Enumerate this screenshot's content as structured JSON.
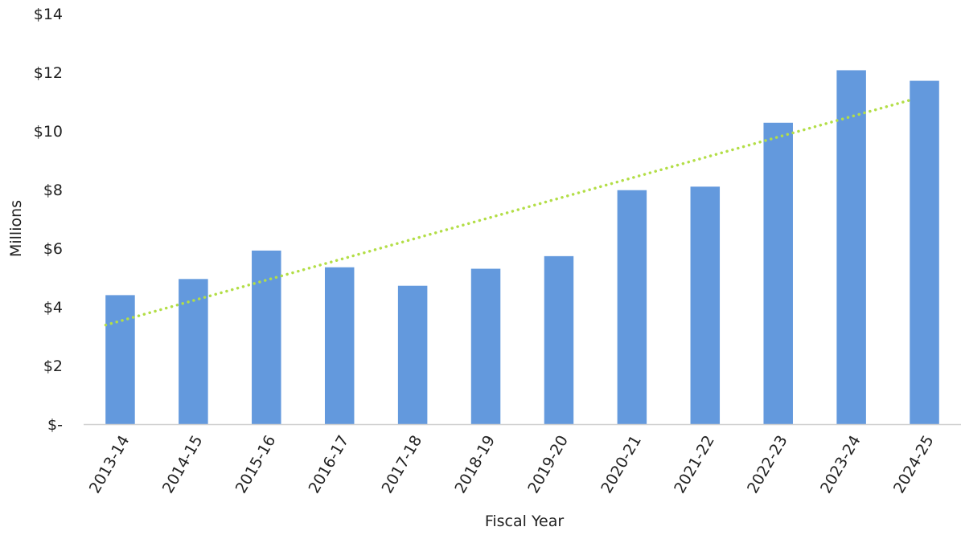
{
  "chart_data": {
    "type": "bar",
    "title": "",
    "xlabel": "Fiscal Year",
    "ylabel": "Millions",
    "categories": [
      "2013-14",
      "2014-15",
      "2015-16",
      "2016-17",
      "2017-18",
      "2018-19",
      "2019-20",
      "2020-21",
      "2021-22",
      "2022-23",
      "2023-24",
      "2024-25"
    ],
    "series": [
      {
        "values": [
          4.4,
          4.95,
          5.92,
          5.35,
          4.72,
          5.3,
          5.73,
          7.98,
          8.1,
          10.28,
          12.07,
          11.71
        ]
      }
    ],
    "trendline": {
      "type": "linear",
      "style": "dotted",
      "start_value": 3.38,
      "end_value": 11.05
    },
    "ylim": [
      0,
      14
    ],
    "yticks": [
      0,
      2,
      4,
      6,
      8,
      10,
      12,
      14
    ],
    "ytick_labels": [
      "$-",
      "$2",
      "$4",
      "$6",
      "$8",
      "$10",
      "$12",
      "$14"
    ],
    "grid": false,
    "legend": "none",
    "colors": {
      "bar": "#6399DD",
      "trendline": "#B3DE47",
      "axis": "#D0D0D0",
      "text": "#222222"
    }
  }
}
